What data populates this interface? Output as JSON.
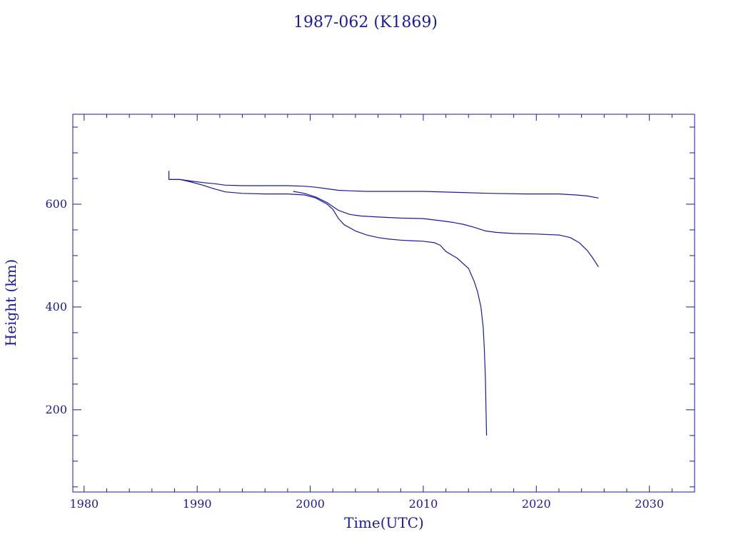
{
  "chart_data": {
    "type": "line",
    "title": "1987-062 (K1869)",
    "xlabel": "Time(UTC)",
    "ylabel": "Height (km)",
    "xlim": [
      1979,
      2034
    ],
    "ylim": [
      40,
      775
    ],
    "xticks": [
      1980,
      1990,
      2000,
      2010,
      2020,
      2030
    ],
    "yticks": [
      200,
      400,
      600
    ],
    "grid": false,
    "color": "#1a1aa0",
    "marker": {
      "x": 1987.5,
      "y1": 648,
      "y2": 665
    },
    "series": [
      {
        "x": [
          1987.5,
          1988.5,
          1989.5,
          1990.5,
          1991.5,
          1992.5,
          1994,
          1996,
          1998,
          1999.5,
          2000.5,
          2001.5,
          2002.5,
          2003.5,
          2005,
          2007,
          2010,
          2013,
          2016,
          2019,
          2022,
          2023.5,
          2024.5,
          2025.5
        ],
        "y": [
          648,
          648,
          645,
          642,
          640,
          637,
          636,
          636,
          636,
          635,
          633,
          630,
          627,
          626,
          625,
          625,
          625,
          623,
          621,
          620,
          620,
          618,
          616,
          612
        ]
      },
      {
        "x": [
          1987.5,
          1988.5,
          1989.5,
          1990.5,
          1991.5,
          1992.5,
          1994,
          1996,
          1998,
          1999.5,
          2000.5,
          2001.5,
          2002,
          2002.5,
          2003,
          2004,
          2005,
          2006,
          2007,
          2008,
          2009,
          2010,
          2011,
          2011.5,
          2012,
          2013,
          2014,
          2014.5,
          2014.8,
          2015.1,
          2015.3,
          2015.4,
          2015.5,
          2015.55,
          2015.6
        ],
        "y": [
          648,
          648,
          643,
          637,
          630,
          624,
          621,
          620,
          620,
          618,
          612,
          600,
          590,
          572,
          560,
          548,
          540,
          535,
          532,
          530,
          529,
          528,
          525,
          520,
          508,
          495,
          475,
          450,
          430,
          400,
          360,
          320,
          260,
          200,
          150
        ]
      },
      {
        "x": [
          1998.5,
          1999.5,
          2000.5,
          2001.5,
          2002.5,
          2003.5,
          2004.5,
          2006,
          2008,
          2010,
          2011.5,
          2012.5,
          2013.5,
          2014.5,
          2015.5,
          2016.5,
          2018,
          2020,
          2022,
          2023,
          2023.8,
          2024.5,
          2025,
          2025.5
        ],
        "y": [
          625,
          621,
          614,
          603,
          588,
          580,
          577,
          575,
          573,
          572,
          568,
          565,
          561,
          555,
          548,
          545,
          543,
          542,
          540,
          535,
          525,
          510,
          495,
          478
        ]
      }
    ]
  }
}
